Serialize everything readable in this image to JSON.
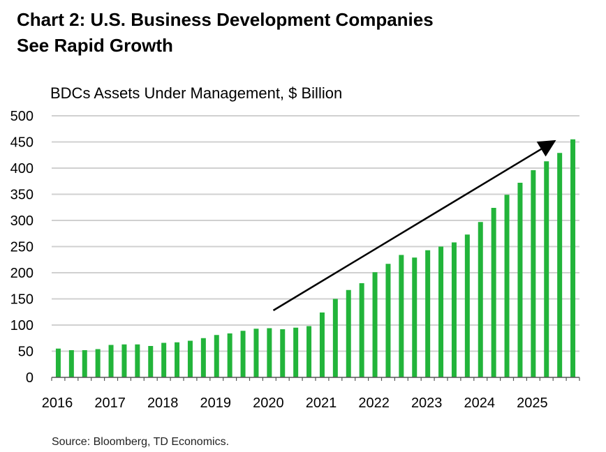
{
  "title_line1": "Chart 2: U.S. Business Development Companies",
  "title_line2": "See Rapid Growth",
  "source": "Source: Bloomberg, TD Economics.",
  "colors": {
    "bar": "#22b43a",
    "grid": "#d0d0d0",
    "axis": "#555555",
    "arrow": "#000000"
  },
  "chart_data": {
    "type": "bar",
    "title": "Chart 2: U.S. Business Development Companies See Rapid Growth",
    "ylabel": "BDCs Assets Under Management, $ Billion",
    "xlabel": "",
    "ylim": [
      0,
      500
    ],
    "yticks": [
      0,
      50,
      100,
      150,
      200,
      250,
      300,
      350,
      400,
      450,
      500
    ],
    "xtick_labels": [
      "2016",
      "2017",
      "2018",
      "2019",
      "2020",
      "2021",
      "2022",
      "2023",
      "2024",
      "2025"
    ],
    "grid": true,
    "annotation": "upward trend arrow from 2020 to 2025",
    "categories": [
      "2016Q1",
      "2016Q2",
      "2016Q3",
      "2016Q4",
      "2017Q1",
      "2017Q2",
      "2017Q3",
      "2017Q4",
      "2018Q1",
      "2018Q2",
      "2018Q3",
      "2018Q4",
      "2019Q1",
      "2019Q2",
      "2019Q3",
      "2019Q4",
      "2020Q1",
      "2020Q2",
      "2020Q3",
      "2020Q4",
      "2021Q1",
      "2021Q2",
      "2021Q3",
      "2021Q4",
      "2022Q1",
      "2022Q2",
      "2022Q3",
      "2022Q4",
      "2023Q1",
      "2023Q2",
      "2023Q3",
      "2023Q4",
      "2024Q1",
      "2024Q2",
      "2024Q3",
      "2024Q4",
      "2025Q1",
      "2025Q2",
      "2025Q3",
      "2025Q4"
    ],
    "values": [
      55,
      52,
      52,
      54,
      62,
      63,
      63,
      60,
      66,
      67,
      70,
      75,
      81,
      84,
      89,
      93,
      94,
      92,
      95,
      98,
      124,
      150,
      167,
      180,
      201,
      217,
      234,
      229,
      243,
      250,
      258,
      273,
      297,
      324,
      349,
      372,
      396,
      413,
      429,
      455
    ]
  }
}
